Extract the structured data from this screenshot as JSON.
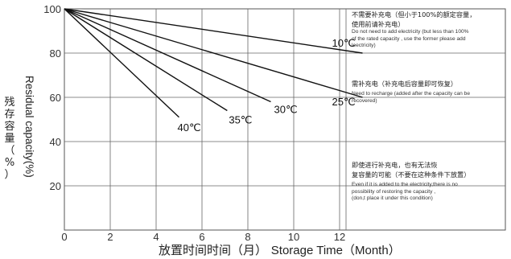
{
  "chart_data": {
    "type": "line",
    "xlabel_cn": "放置时间时间（月）",
    "xlabel_en": "Storage Time（Month）",
    "ylabel_cn": [
      "残",
      "存",
      "容",
      "量",
      "（",
      "%",
      "）"
    ],
    "ylabel_en": "Residual capacity(%)",
    "x_ticks": [
      0,
      2,
      4,
      6,
      8,
      10,
      12
    ],
    "x_tick_labels": [
      "0",
      "2",
      "4",
      "6",
      "8",
      "10",
      "12"
    ],
    "y_ticks": [
      20,
      40,
      60,
      80,
      100
    ],
    "y_tick_labels": [
      "20",
      "40",
      "60",
      "80",
      "100"
    ],
    "xlim": [
      -1,
      14
    ],
    "ylim": [
      0,
      100
    ],
    "grid": true,
    "series": [
      {
        "name": "10℃",
        "x": [
          0,
          13
        ],
        "y": [
          100,
          80
        ]
      },
      {
        "name": "25℃",
        "x": [
          0,
          13
        ],
        "y": [
          100,
          60
        ]
      },
      {
        "name": "30℃",
        "x": [
          0,
          9
        ],
        "y": [
          100,
          58
        ]
      },
      {
        "name": "35℃",
        "x": [
          0,
          7.1
        ],
        "y": [
          100,
          54
        ]
      },
      {
        "name": "40℃",
        "x": [
          0,
          5
        ],
        "y": [
          100,
          51
        ]
      }
    ],
    "annotations": [
      {
        "cn": [
          "不需要补充电（但小于100%的额定容量，",
          "使用前请补充电）"
        ],
        "en": [
          "Do not need to add electricity (but less than 100%",
          "of the rated capacity , use the former please add",
          "leectricity)"
        ]
      },
      {
        "cn": [
          "需补充电（补充电后容量即可恢复）"
        ],
        "en": [
          "Need to recharge (added after the capacity can be",
          "recovered)"
        ]
      },
      {
        "cn": [
          "即使进行补充电，也有无法恢",
          "复容量的可能（不要在这种条件下放置）"
        ],
        "en": [
          "Even if it is added to the electricity,there is no",
          "possibility of restoring the capacity ,",
          "(don,t place it under this condition)"
        ]
      }
    ]
  }
}
